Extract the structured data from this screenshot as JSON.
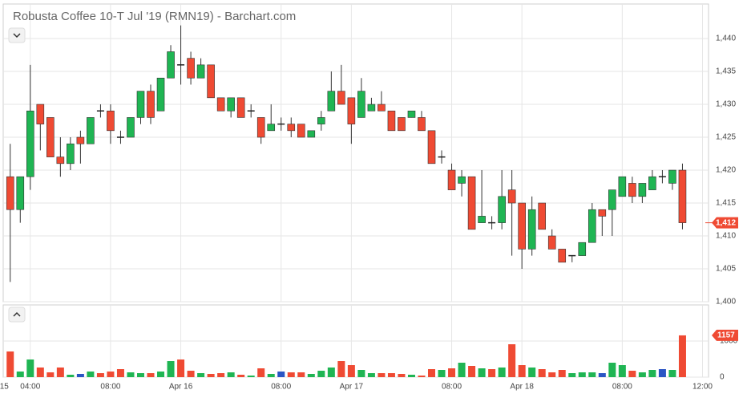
{
  "chart_data": {
    "type": "candlestick",
    "title": "Robusta Coffee 10-T Jul '19 (RMN19) - Barchart.com",
    "xlim": [
      -0.7,
      69.6
    ],
    "xticks": [
      {
        "value": -0.6,
        "label": "15"
      },
      {
        "value": 2,
        "label": "04:00"
      },
      {
        "value": 10,
        "label": "08:00"
      },
      {
        "value": 17,
        "label": "Apr 16"
      },
      {
        "value": 27,
        "label": "08:00"
      },
      {
        "value": 34,
        "label": "Apr 17"
      },
      {
        "value": 44,
        "label": "08:00"
      },
      {
        "value": 51,
        "label": "Apr 18"
      },
      {
        "value": 61,
        "label": "08:00"
      },
      {
        "value": 69,
        "label": "12:00"
      }
    ],
    "ylim": [
      1400,
      1445.25
    ],
    "yticks": [
      {
        "value": 1400,
        "label": "1,400"
      },
      {
        "value": 1405,
        "label": "1,405"
      },
      {
        "value": 1410,
        "label": "1,410"
      },
      {
        "value": 1415,
        "label": "1,415"
      },
      {
        "value": 1420,
        "label": "1,420"
      },
      {
        "value": 1425,
        "label": "1,425"
      },
      {
        "value": 1430,
        "label": "1,430"
      },
      {
        "value": 1435,
        "label": "1,435"
      },
      {
        "value": 1440,
        "label": "1,440"
      }
    ],
    "grid": true,
    "up_color": "#1fb553",
    "down_color": "#ef4a33",
    "flat_color": "#222222",
    "open": [
      1419,
      1414,
      1419,
      1430,
      1428,
      1422,
      1421,
      1425,
      1424,
      1429,
      1429,
      1425,
      1425,
      1428,
      1432,
      1429,
      1434,
      1436,
      1437,
      1434,
      1436,
      1431,
      1429,
      1431,
      1429,
      1428,
      1426,
      1427,
      1427,
      1427,
      1425,
      1427,
      1429,
      1432,
      1431,
      1428,
      1429,
      1430,
      1429,
      1428,
      1428,
      1428,
      1426,
      1422,
      1420,
      1418,
      1419,
      1412,
      1412,
      1412,
      1417,
      1415,
      1408,
      1415,
      1410,
      1408,
      1407,
      1407,
      1409,
      1414,
      1414,
      1416,
      1418,
      1416,
      1417,
      1419,
      1418,
      1420
    ],
    "high": [
      1424,
      1419,
      1436,
      1430,
      1428,
      1425,
      1425,
      1426,
      1428,
      1430,
      1430,
      1426,
      1428,
      1432,
      1433,
      1434,
      1439,
      1442,
      1438,
      1437,
      1436,
      1431,
      1431,
      1431,
      1430,
      1428,
      1430,
      1428,
      1428,
      1427,
      1426,
      1429,
      1435,
      1436,
      1431,
      1434,
      1431,
      1432,
      1429,
      1428,
      1429,
      1429,
      1426,
      1423,
      1421,
      1420,
      1419,
      1420,
      1413,
      1420,
      1420,
      1415,
      1416,
      1415,
      1411,
      1408,
      1407,
      1409,
      1415,
      1414,
      1417,
      1419,
      1419,
      1418,
      1420,
      1420,
      1420,
      1421
    ],
    "low": [
      1403,
      1412,
      1417,
      1423,
      1422,
      1419,
      1420,
      1421,
      1424,
      1428,
      1424,
      1424,
      1425,
      1427,
      1427,
      1429,
      1434,
      1433,
      1433,
      1434,
      1431,
      1429,
      1428,
      1428,
      1428,
      1424,
      1426,
      1426,
      1425,
      1425,
      1425,
      1426,
      1429,
      1430,
      1424,
      1428,
      1429,
      1429,
      1426,
      1426,
      1428,
      1426,
      1421,
      1421,
      1417,
      1416,
      1411,
      1412,
      1411,
      1411,
      1407,
      1405,
      1407,
      1411,
      1408,
      1406,
      1406,
      1407,
      1409,
      1410,
      1410,
      1416,
      1415,
      1415,
      1417,
      1418,
      1417,
      1411
    ],
    "close": [
      1414,
      1419,
      1429,
      1427,
      1422,
      1421,
      1424,
      1424,
      1428,
      1429,
      1426,
      1425,
      1428,
      1432,
      1428,
      1434,
      1438,
      1436,
      1434,
      1436,
      1431,
      1429,
      1431,
      1428,
      1429,
      1425,
      1427,
      1427,
      1426,
      1425,
      1426,
      1428,
      1432,
      1430,
      1427,
      1432,
      1430,
      1429,
      1426,
      1426,
      1429,
      1426,
      1421,
      1422,
      1417,
      1419,
      1411,
      1413,
      1412,
      1416,
      1415,
      1408,
      1414,
      1411,
      1408,
      1406,
      1407,
      1409,
      1414,
      1413,
      1417,
      1419,
      1416,
      1418,
      1419,
      1419,
      1420,
      1412
    ],
    "price_tag": {
      "value": 1412,
      "label": "1,412"
    },
    "volume": {
      "ylim": [
        0,
        2000
      ],
      "yticks": [
        0,
        1000
      ],
      "values": [
        711,
        156,
        489,
        267,
        133,
        267,
        67,
        89,
        156,
        111,
        156,
        222,
        133,
        111,
        111,
        156,
        444,
        489,
        178,
        111,
        89,
        111,
        133,
        67,
        44,
        244,
        89,
        156,
        133,
        133,
        89,
        178,
        267,
        444,
        333,
        200,
        111,
        111,
        111,
        89,
        67,
        44,
        222,
        200,
        244,
        400,
        311,
        244,
        222,
        267,
        911,
        333,
        267,
        222,
        133,
        200,
        111,
        133,
        133,
        111,
        400,
        333,
        178,
        133,
        200,
        222,
        200,
        1157
      ],
      "colors": [
        "#ef4a33",
        "#1fb553",
        "#1fb553",
        "#ef4a33",
        "#ef4a33",
        "#ef4a33",
        "#1fb553",
        "#2a55c4",
        "#1fb553",
        "#ef4a33",
        "#ef4a33",
        "#ef4a33",
        "#1fb553",
        "#1fb553",
        "#ef4a33",
        "#1fb553",
        "#1fb553",
        "#ef4a33",
        "#ef4a33",
        "#1fb553",
        "#ef4a33",
        "#ef4a33",
        "#1fb553",
        "#ef4a33",
        "#1fb553",
        "#ef4a33",
        "#1fb553",
        "#2a55c4",
        "#ef4a33",
        "#ef4a33",
        "#1fb553",
        "#1fb553",
        "#1fb553",
        "#ef4a33",
        "#ef4a33",
        "#1fb553",
        "#1fb553",
        "#ef4a33",
        "#ef4a33",
        "#ef4a33",
        "#1fb553",
        "#ef4a33",
        "#ef4a33",
        "#1fb553",
        "#ef4a33",
        "#1fb553",
        "#ef4a33",
        "#1fb553",
        "#ef4a33",
        "#1fb553",
        "#ef4a33",
        "#ef4a33",
        "#1fb553",
        "#ef4a33",
        "#ef4a33",
        "#ef4a33",
        "#1fb553",
        "#1fb553",
        "#1fb553",
        "#2a55c4",
        "#1fb553",
        "#1fb553",
        "#ef4a33",
        "#1fb553",
        "#1fb553",
        "#2a55c4",
        "#1fb553",
        "#ef4a33"
      ]
    }
  }
}
